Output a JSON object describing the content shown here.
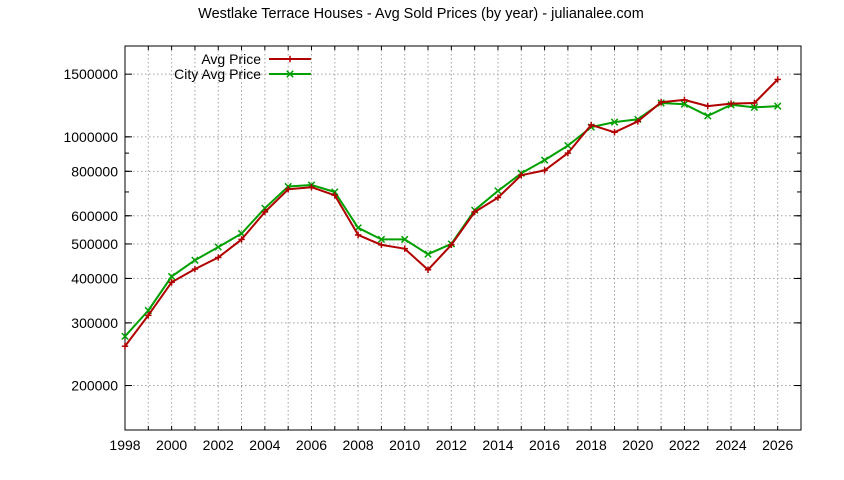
{
  "chart_data": {
    "type": "line",
    "title": "Westlake Terrace Houses - Avg Sold Prices (by year) - julianalee.com",
    "xlabel": "",
    "ylabel": "",
    "xlim": [
      1998,
      2027
    ],
    "ylim": [
      150000,
      1800000
    ],
    "y_scale": "log",
    "grid": true,
    "legend_position": "top-left",
    "x_ticks": [
      "1998",
      "2000",
      "2002",
      "2004",
      "2006",
      "2008",
      "2010",
      "2012",
      "2014",
      "2016",
      "2018",
      "2020",
      "2022",
      "2024",
      "2026"
    ],
    "y_ticks": [
      "200000",
      "300000",
      "400000",
      "500000",
      "600000",
      "800000",
      "1000000",
      "1500000"
    ],
    "series": [
      {
        "name": "Avg Price",
        "color": "#b00000",
        "marker": "plus",
        "x": [
          1998,
          1999,
          2000,
          2001,
          2002,
          2003,
          2004,
          2005,
          2006,
          2007,
          2008,
          2009,
          2010,
          2011,
          2012,
          2013,
          2014,
          2015,
          2016,
          2017,
          2018,
          2019,
          2020,
          2021,
          2022,
          2023,
          2024,
          2025,
          2026
        ],
        "values": [
          258000,
          315000,
          390000,
          425000,
          458000,
          515000,
          615000,
          712000,
          722000,
          685000,
          530000,
          497000,
          485000,
          423000,
          497000,
          615000,
          675000,
          780000,
          805000,
          900000,
          1080000,
          1030000,
          1105000,
          1250000,
          1270000,
          1220000,
          1240000,
          1245000,
          1450000
        ]
      },
      {
        "name": "City Avg Price",
        "color": "#00a000",
        "marker": "cross",
        "x": [
          1998,
          1999,
          2000,
          2001,
          2002,
          2003,
          2004,
          2005,
          2006,
          2007,
          2008,
          2009,
          2010,
          2011,
          2012,
          2013,
          2014,
          2015,
          2016,
          2017,
          2018,
          2019,
          2020,
          2021,
          2022,
          2023,
          2024,
          2025,
          2026
        ],
        "values": [
          275000,
          325000,
          405000,
          450000,
          490000,
          535000,
          630000,
          725000,
          732000,
          700000,
          555000,
          515000,
          515000,
          468000,
          500000,
          622000,
          705000,
          790000,
          860000,
          945000,
          1065000,
          1100000,
          1120000,
          1245000,
          1235000,
          1145000,
          1230000,
          1210000,
          1220000
        ]
      }
    ]
  }
}
